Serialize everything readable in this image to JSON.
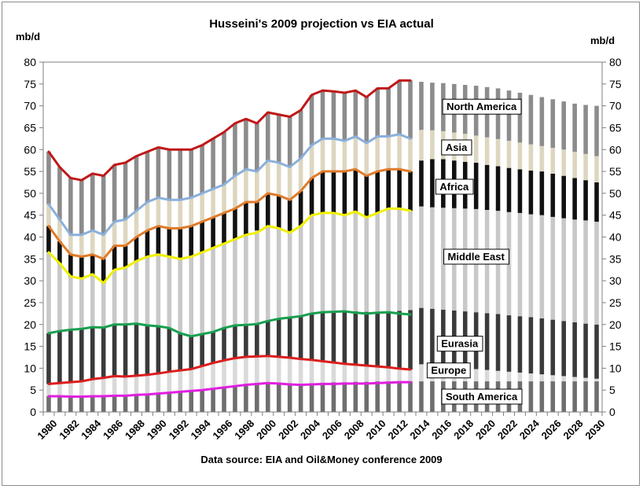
{
  "chart_data": {
    "type": "bar",
    "title": "Husseini's 2009 projection vs EIA actual",
    "ylabel_left": "mb/d",
    "ylabel_right": "mb/d",
    "source_note": "Data source: EIA and Oil&Money conference 2009",
    "ylim": [
      0,
      80
    ],
    "yticks": [
      0,
      5,
      10,
      15,
      20,
      25,
      30,
      35,
      40,
      45,
      50,
      55,
      60,
      65,
      70,
      75,
      80
    ],
    "xlim": [
      1980,
      2030
    ],
    "xtick_labels": [
      "1980",
      "1982",
      "1984",
      "1986",
      "1988",
      "1990",
      "1992",
      "1994",
      "1996",
      "1998",
      "2000",
      "2002",
      "2004",
      "2006",
      "2008",
      "2010",
      "2012",
      "2014",
      "2016",
      "2018",
      "2020",
      "2022",
      "2024",
      "2026",
      "2028",
      "2030"
    ],
    "grid": false,
    "legend": "none",
    "projection": {
      "stacked_regions": [
        {
          "name": "South America",
          "color": "#6e6e6e"
        },
        {
          "name": "Europe",
          "color": "#d9d9d9"
        },
        {
          "name": "Eurasia",
          "color": "#3a3a3a"
        },
        {
          "name": "Middle East",
          "color": "#c8c8c8"
        },
        {
          "name": "Africa",
          "color": "#111111"
        },
        {
          "name": "Asia",
          "color": "#ddd6bf"
        },
        {
          "name": "North America",
          "color": "#8c8c8c"
        }
      ],
      "x": [
        1980,
        1981,
        1982,
        1983,
        1984,
        1985,
        1986,
        1987,
        1988,
        1989,
        1990,
        1991,
        1992,
        1993,
        1994,
        1995,
        1996,
        1997,
        1998,
        1999,
        2000,
        2001,
        2002,
        2003,
        2004,
        2005,
        2006,
        2007,
        2008,
        2009,
        2010,
        2011,
        2012,
        2013,
        2014,
        2015,
        2016,
        2017,
        2018,
        2019,
        2020,
        2021,
        2022,
        2023,
        2024,
        2025,
        2026,
        2027,
        2028,
        2029,
        2030
      ],
      "cumulative_tops": {
        "South America": [
          3.6,
          3.6,
          3.5,
          3.5,
          3.6,
          3.6,
          3.7,
          3.7,
          3.9,
          4.0,
          4.2,
          4.4,
          4.6,
          4.8,
          5.0,
          5.3,
          5.6,
          5.9,
          6.2,
          6.4,
          6.6,
          6.6,
          6.6,
          6.5,
          6.6,
          6.7,
          6.8,
          6.8,
          6.9,
          6.9,
          7.0,
          7.0,
          7.0,
          7.0,
          7.0,
          7.0,
          7.0,
          7.0,
          7.0,
          7.0,
          7.0,
          7.0,
          7.0,
          7.0,
          7.0,
          7.0,
          7.0,
          7.0,
          7.0,
          7.0,
          7.0
        ],
        "Europe": [
          6.4,
          6.6,
          6.8,
          7.0,
          7.5,
          7.8,
          8.2,
          8.1,
          8.3,
          8.5,
          8.8,
          9.2,
          9.5,
          9.8,
          10.5,
          11.2,
          11.8,
          12.3,
          12.6,
          12.7,
          12.8,
          12.6,
          12.4,
          12.1,
          11.9,
          11.6,
          11.3,
          11.0,
          10.8,
          10.6,
          10.4,
          10.2,
          9.9,
          9.7,
          10.9,
          10.6,
          10.4,
          10.2,
          10.0,
          9.8,
          9.6,
          9.4,
          9.2,
          9.0,
          8.8,
          8.6,
          8.4,
          8.2,
          8.0,
          7.8,
          7.6
        ],
        "Eurasia": [
          18.0,
          18.5,
          18.8,
          19.0,
          19.4,
          19.3,
          20.0,
          20.0,
          20.2,
          19.8,
          19.6,
          19.2,
          18.0,
          17.3,
          17.8,
          18.3,
          19.2,
          19.8,
          19.9,
          20.1,
          20.8,
          21.3,
          21.6,
          21.9,
          22.5,
          22.8,
          22.9,
          23.0,
          23.0,
          22.9,
          22.9,
          23.0,
          23.1,
          23.3,
          23.8,
          23.6,
          23.4,
          23.2,
          23.0,
          22.8,
          22.6,
          22.4,
          22.1,
          21.9,
          21.7,
          21.4,
          21.1,
          20.8,
          20.5,
          20.2,
          20.0
        ],
        "Middle East": [
          36.5,
          34.0,
          31.0,
          30.5,
          31.5,
          29.5,
          32.5,
          33.0,
          34.5,
          35.5,
          36.0,
          35.5,
          35.0,
          35.5,
          36.5,
          37.5,
          38.5,
          39.5,
          40.5,
          41.5,
          42.5,
          42.0,
          41.0,
          42.5,
          45.0,
          45.5,
          45.5,
          45.0,
          45.8,
          44.5,
          45.5,
          46.5,
          46.5,
          46.0,
          47.0,
          46.8,
          46.7,
          46.6,
          46.5,
          46.4,
          46.2,
          46.0,
          45.7,
          45.5,
          45.2,
          45.0,
          44.6,
          44.3,
          44.0,
          43.8,
          43.5
        ],
        "Africa": [
          42.5,
          39.0,
          36.0,
          35.5,
          36.0,
          35.0,
          38.0,
          38.0,
          40.0,
          41.5,
          42.5,
          42.0,
          42.0,
          42.5,
          43.5,
          44.5,
          45.5,
          46.5,
          48.0,
          48.0,
          50.0,
          49.5,
          48.5,
          50.5,
          53.5,
          55.0,
          55.0,
          55.0,
          55.5,
          54.0,
          55.0,
          55.5,
          55.5,
          55.0,
          57.5,
          57.8,
          57.8,
          57.5,
          57.2,
          57.0,
          56.5,
          56.2,
          55.8,
          55.5,
          55.2,
          55.0,
          54.5,
          54.0,
          53.5,
          53.0,
          52.5
        ],
        "Asia": [
          47.5,
          44.0,
          40.5,
          40.5,
          41.5,
          40.5,
          43.5,
          44.0,
          46.0,
          48.0,
          49.0,
          48.5,
          48.5,
          49.0,
          50.0,
          51.0,
          52.0,
          54.0,
          55.5,
          55.0,
          57.5,
          57.0,
          56.0,
          58.0,
          61.0,
          62.5,
          62.5,
          62.0,
          63.0,
          61.5,
          63.0,
          63.0,
          63.5,
          62.5,
          64.5,
          64.4,
          64.2,
          63.9,
          63.6,
          63.2,
          62.8,
          62.4,
          62.0,
          61.6,
          61.2,
          60.8,
          60.4,
          60.0,
          59.5,
          59.0,
          58.5
        ],
        "North America": [
          59.5,
          56.0,
          53.5,
          53.0,
          54.5,
          54.0,
          56.5,
          57.0,
          58.5,
          59.5,
          60.5,
          60.0,
          60.0,
          60.0,
          61.0,
          62.5,
          64.0,
          66.0,
          67.0,
          66.0,
          68.5,
          68.0,
          67.5,
          69.0,
          72.5,
          73.5,
          73.3,
          73.0,
          73.5,
          72.0,
          74.0,
          74.0,
          75.8,
          75.8,
          75.5,
          75.3,
          75.2,
          75.0,
          74.8,
          74.6,
          74.3,
          74.0,
          73.5,
          73.0,
          72.5,
          72.0,
          71.5,
          71.0,
          70.5,
          70.2,
          70.0
        ]
      }
    },
    "actual_eia_lines": {
      "years": [
        1980,
        1981,
        1982,
        1983,
        1984,
        1985,
        1986,
        1987,
        1988,
        1989,
        1990,
        1991,
        1992,
        1993,
        1994,
        1995,
        1996,
        1997,
        1998,
        1999,
        2000,
        2001,
        2002,
        2003,
        2004,
        2005,
        2006,
        2007,
        2008,
        2009,
        2010,
        2011,
        2012,
        2013
      ],
      "series": [
        {
          "name": "South America",
          "color": "#e020e0",
          "values": [
            3.6,
            3.6,
            3.5,
            3.5,
            3.6,
            3.6,
            3.7,
            3.7,
            3.9,
            4.0,
            4.2,
            4.4,
            4.6,
            4.8,
            5.0,
            5.3,
            5.6,
            5.9,
            6.2,
            6.4,
            6.6,
            6.5,
            6.3,
            6.2,
            6.3,
            6.4,
            6.4,
            6.5,
            6.5,
            6.5,
            6.6,
            6.7,
            6.8,
            6.8
          ]
        },
        {
          "name": "Europe",
          "color": "#dc1e1e",
          "values": [
            6.4,
            6.6,
            6.8,
            7.0,
            7.5,
            7.8,
            8.2,
            8.1,
            8.3,
            8.5,
            8.8,
            9.2,
            9.5,
            9.8,
            10.5,
            11.2,
            11.8,
            12.3,
            12.6,
            12.7,
            12.8,
            12.6,
            12.4,
            12.1,
            11.9,
            11.6,
            11.3,
            11.0,
            10.8,
            10.6,
            10.4,
            10.2,
            9.9,
            9.7
          ]
        },
        {
          "name": "Eurasia",
          "color": "#18a050",
          "values": [
            18.0,
            18.5,
            18.8,
            19.0,
            19.4,
            19.3,
            20.0,
            20.0,
            20.2,
            19.8,
            19.6,
            19.2,
            18.0,
            17.3,
            17.8,
            18.3,
            19.2,
            19.8,
            19.9,
            20.1,
            20.8,
            21.3,
            21.6,
            21.9,
            22.5,
            22.8,
            22.9,
            23.0,
            22.7,
            22.5,
            22.7,
            22.8,
            22.5,
            22.3
          ]
        },
        {
          "name": "Middle East",
          "color": "#f0f000",
          "values": [
            36.5,
            34.0,
            31.0,
            30.5,
            31.5,
            29.5,
            32.5,
            33.0,
            34.5,
            35.5,
            36.0,
            35.5,
            35.0,
            35.5,
            36.5,
            37.5,
            38.5,
            39.5,
            40.5,
            41.0,
            42.5,
            42.0,
            41.0,
            42.5,
            45.0,
            45.5,
            45.5,
            45.0,
            45.8,
            44.5,
            45.5,
            46.5,
            46.5,
            46.0
          ]
        },
        {
          "name": "Africa",
          "color": "#e07a28",
          "values": [
            42.5,
            39.0,
            36.0,
            35.5,
            36.0,
            35.0,
            38.0,
            38.0,
            40.0,
            41.5,
            42.5,
            42.0,
            42.0,
            42.5,
            43.5,
            44.5,
            45.5,
            46.5,
            48.0,
            48.0,
            50.0,
            49.5,
            48.5,
            50.5,
            53.5,
            55.0,
            55.0,
            55.0,
            55.5,
            54.0,
            55.0,
            55.5,
            55.5,
            55.0
          ]
        },
        {
          "name": "Asia",
          "color": "#8ab0dc",
          "values": [
            47.5,
            44.0,
            40.5,
            40.5,
            41.5,
            40.5,
            43.5,
            44.0,
            46.0,
            48.0,
            49.0,
            48.5,
            48.5,
            49.0,
            50.0,
            51.0,
            52.0,
            54.0,
            55.5,
            55.0,
            57.5,
            57.0,
            56.0,
            58.0,
            61.0,
            62.5,
            62.5,
            62.0,
            63.0,
            61.5,
            63.0,
            63.0,
            63.5,
            62.5
          ]
        },
        {
          "name": "North America",
          "color": "#c01818",
          "values": [
            59.5,
            56.0,
            53.5,
            53.0,
            54.5,
            54.0,
            56.5,
            57.0,
            58.5,
            59.5,
            60.5,
            60.0,
            60.0,
            60.0,
            61.0,
            62.5,
            64.0,
            66.0,
            67.0,
            66.0,
            68.5,
            68.0,
            67.5,
            69.0,
            72.5,
            73.5,
            73.3,
            73.0,
            73.5,
            72.0,
            74.0,
            74.0,
            75.8,
            75.8
          ]
        }
      ]
    },
    "region_labels": [
      {
        "text": "North America",
        "x": 2019.5,
        "y": 69.8
      },
      {
        "text": "Asia",
        "x": 2017.2,
        "y": 60.5
      },
      {
        "text": "Africa",
        "x": 2017.0,
        "y": 51.5
      },
      {
        "text": "Middle East",
        "x": 2019.0,
        "y": 35.5
      },
      {
        "text": "Eurasia",
        "x": 2017.5,
        "y": 15.6
      },
      {
        "text": "Europe",
        "x": 2016.5,
        "y": 9.5
      },
      {
        "text": "South America",
        "x": 2019.5,
        "y": 3.5
      }
    ]
  }
}
